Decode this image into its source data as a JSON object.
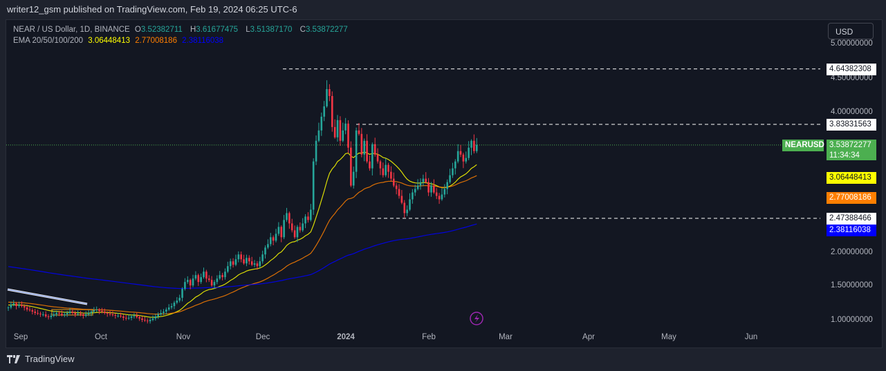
{
  "publish_line": "writer12_gsm published on TradingView.com, Feb 19, 2024 06:25 UTC-6",
  "legend": {
    "symbol": "NEAR / US Dollar, 1D, BINANCE",
    "o_label": "O",
    "o": "3.52382711",
    "h_label": "H",
    "h": "3.61677475",
    "l_label": "L",
    "l": "3.51387170",
    "c_label": "C",
    "c": "3.53872277",
    "ema_label": "EMA 20/50/100/200",
    "ema_a": "3.06448413",
    "ema_b": "2.77008186",
    "ema_c": "2.38116038"
  },
  "currency": "USD",
  "price_ticks": [
    "5.00000000",
    "4.50000000",
    "4.00000000",
    "2.00000000",
    "1.50000000",
    "1.00000000"
  ],
  "x_ticks": [
    "Sep",
    "Oct",
    "Nov",
    "Dec",
    "2024",
    "Feb",
    "Mar",
    "Apr",
    "May",
    "Jun"
  ],
  "levels": {
    "resistance_high": "4.64382308",
    "resistance": "3.83831563",
    "support": "2.47388466"
  },
  "last": {
    "symbol": "NEARUSD",
    "price": "3.53872277",
    "countdown": "11:34:34"
  },
  "ema_tags": {
    "a": "3.06448413",
    "b": "2.77008186",
    "c": "2.38116038"
  },
  "colors": {
    "up": "#26a69a",
    "down": "#f23645",
    "ema_a": "#ffff00",
    "ema_b": "#ff7f00",
    "ema_c": "#0000ff",
    "last": "#4caf50"
  },
  "brand": "TradingView",
  "chart_data": {
    "type": "candlestick",
    "interval": "1D",
    "ylim": [
      0.9,
      5.2
    ],
    "closes": [
      1.18,
      1.22,
      1.24,
      1.2,
      1.22,
      1.2,
      1.18,
      1.15,
      1.14,
      1.12,
      1.1,
      1.09,
      1.08,
      1.08,
      1.05,
      1.04,
      1.06,
      1.08,
      1.1,
      1.09,
      1.07,
      1.08,
      1.1,
      1.12,
      1.1,
      1.08,
      1.09,
      1.08,
      1.06,
      1.08,
      1.1,
      1.12,
      1.14,
      1.15,
      1.13,
      1.12,
      1.1,
      1.09,
      1.08,
      1.07,
      1.06,
      1.06,
      1.05,
      1.03,
      1.02,
      1.03,
      1.05,
      1.06,
      1.04,
      1.02,
      1.0,
      0.99,
      0.98,
      1.0,
      1.02,
      1.05,
      1.08,
      1.1,
      1.12,
      1.15,
      1.18,
      1.2,
      1.25,
      1.28,
      1.32,
      1.45,
      1.55,
      1.58,
      1.5,
      1.6,
      1.65,
      1.55,
      1.62,
      1.7,
      1.6,
      1.58,
      1.5,
      1.55,
      1.6,
      1.65,
      1.62,
      1.7,
      1.78,
      1.85,
      1.8,
      1.88,
      1.95,
      1.88,
      1.82,
      1.9,
      1.85,
      1.8,
      1.82,
      1.78,
      1.85,
      1.95,
      2.05,
      2.1,
      2.2,
      2.15,
      2.25,
      2.35,
      2.2,
      2.45,
      2.55,
      2.4,
      2.3,
      2.2,
      2.35,
      2.3,
      2.4,
      2.5,
      2.45,
      2.6,
      3.3,
      3.6,
      3.75,
      3.95,
      4.1,
      4.35,
      4.25,
      3.8,
      3.65,
      3.9,
      3.6,
      3.75,
      3.85,
      3.5,
      2.95,
      3.15,
      3.75,
      3.7,
      3.4,
      3.6,
      3.3,
      3.2,
      3.55,
      3.4,
      3.3,
      3.2,
      3.1,
      3.25,
      3.15,
      3.05,
      2.95,
      2.9,
      2.8,
      2.7,
      2.55,
      2.6,
      2.75,
      2.85,
      2.9,
      2.95,
      3.0,
      3.05,
      3.0,
      2.85,
      2.95,
      2.85,
      2.8,
      2.75,
      2.82,
      2.9,
      3.0,
      3.1,
      3.2,
      3.3,
      3.45,
      3.4,
      3.3,
      3.35,
      3.5,
      3.6,
      3.45,
      3.54
    ]
  }
}
